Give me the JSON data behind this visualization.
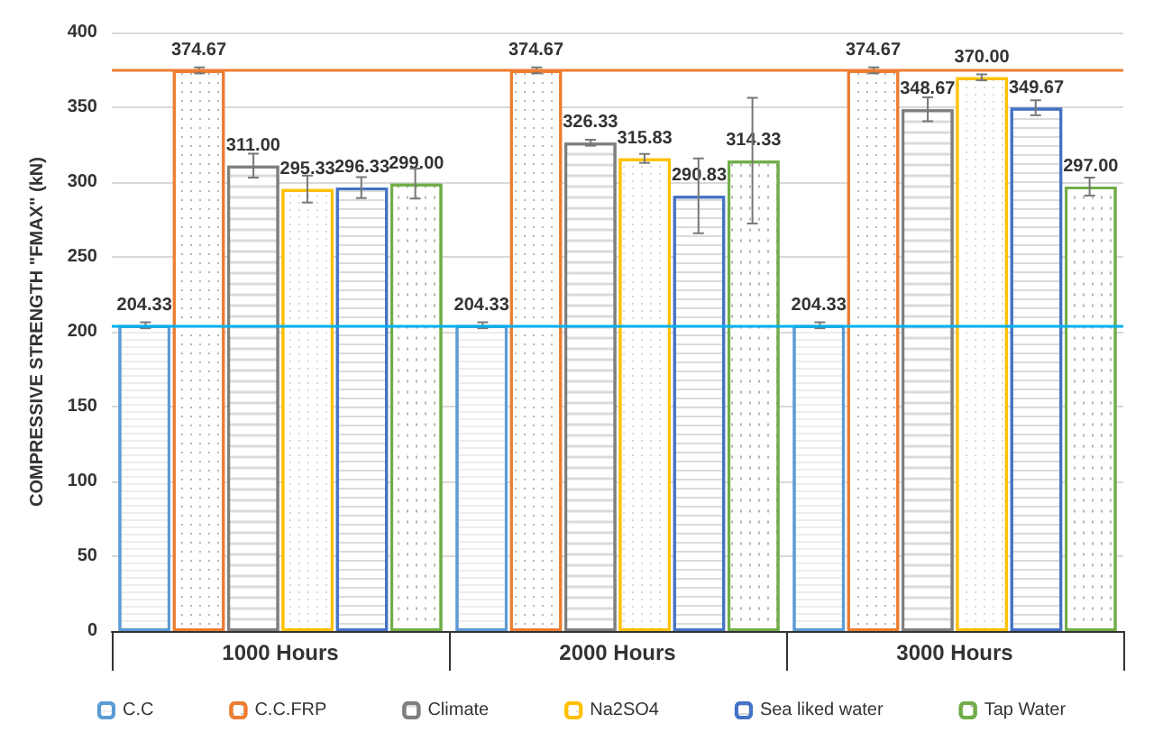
{
  "chart_data": {
    "type": "bar",
    "ylabel": "COMPRESSIVE STRENGTH \"FMAX\" (kN)",
    "categories": [
      "1000 Hours",
      "2000 Hours",
      "3000 Hours"
    ],
    "series": [
      {
        "name": "C.C",
        "color": "#5b9bd5",
        "values": [
          204.33,
          204.33,
          204.33
        ],
        "value_labels": [
          "204.33",
          "204.33",
          "204.33"
        ],
        "errors": [
          2,
          2,
          2
        ]
      },
      {
        "name": "C.C.FRP",
        "color": "#ed7d31",
        "values": [
          374.67,
          374.67,
          374.67
        ],
        "value_labels": [
          "374.67",
          "374.67",
          "374.67"
        ],
        "errors": [
          2,
          2,
          2
        ]
      },
      {
        "name": "Climate",
        "color": "#7f7f7f",
        "values": [
          311.0,
          326.33,
          348.67
        ],
        "value_labels": [
          "311.00",
          "326.33",
          "348.67"
        ],
        "errors": [
          8,
          2,
          8
        ]
      },
      {
        "name": "Na2SO4",
        "color": "#ffc000",
        "values": [
          295.33,
          315.83,
          370.0
        ],
        "value_labels": [
          "295.33",
          "315.83",
          "370.00"
        ],
        "errors": [
          9,
          3,
          2
        ]
      },
      {
        "name": "Sea liked water",
        "color": "#4472c4",
        "values": [
          296.33,
          290.83,
          349.67
        ],
        "value_labels": [
          "296.33",
          "290.83",
          "349.67"
        ],
        "errors": [
          7,
          25,
          5
        ]
      },
      {
        "name": "Tap Water",
        "color": "#70ad47",
        "values": [
          299.0,
          314.33,
          297.0
        ],
        "value_labels": [
          "299.00",
          "314.33",
          "297.00"
        ],
        "errors": [
          10,
          42,
          6
        ]
      }
    ],
    "ylim": [
      0,
      400
    ],
    "yticks": [
      0,
      50,
      100,
      150,
      200,
      250,
      300,
      350,
      400
    ],
    "grid": "y",
    "legend": "bottom",
    "ref_lines": [
      {
        "axis": "y",
        "value": 374.67,
        "color": "#ed7d31"
      },
      {
        "axis": "y",
        "value": 204.33,
        "color": "#00b0f0"
      }
    ]
  }
}
